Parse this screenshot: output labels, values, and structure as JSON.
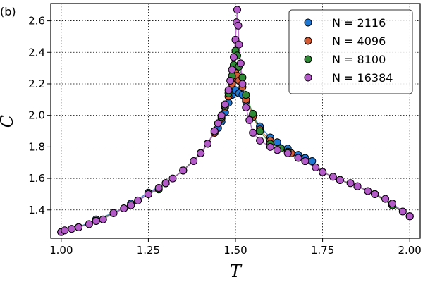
{
  "panel_label": "(b)",
  "chart_data": {
    "type": "scatter",
    "title": "",
    "xlabel": "T",
    "ylabel": "C",
    "xlim": [
      0.97,
      2.03
    ],
    "ylim": [
      1.22,
      2.71
    ],
    "xticks": [
      1.0,
      1.25,
      1.5,
      1.75,
      2.0
    ],
    "xtick_labels": [
      "1.00",
      "1.25",
      "1.50",
      "1.75",
      "2.00"
    ],
    "yticks": [
      1.4,
      1.6,
      1.8,
      2.0,
      2.2,
      2.4,
      2.6
    ],
    "ytick_labels": [
      "1.4",
      "1.6",
      "1.8",
      "2.0",
      "2.2",
      "2.4",
      "2.6"
    ],
    "grid": true,
    "grid_style": "dotted",
    "legend_position": "top-right",
    "series": [
      {
        "name": "N = 2116",
        "color": "#1f77d4",
        "points": [
          [
            1.0,
            1.26
          ],
          [
            1.05,
            1.29
          ],
          [
            1.1,
            1.34
          ],
          [
            1.15,
            1.38
          ],
          [
            1.2,
            1.44
          ],
          [
            1.25,
            1.51
          ],
          [
            1.3,
            1.57
          ],
          [
            1.35,
            1.65
          ],
          [
            1.4,
            1.76
          ],
          [
            1.42,
            1.82
          ],
          [
            1.44,
            1.89
          ],
          [
            1.45,
            1.92
          ],
          [
            1.46,
            1.96
          ],
          [
            1.47,
            2.02
          ],
          [
            1.48,
            2.08
          ],
          [
            1.49,
            2.13
          ],
          [
            1.5,
            2.16
          ],
          [
            1.51,
            2.14
          ],
          [
            1.52,
            2.13
          ],
          [
            1.53,
            2.09
          ],
          [
            1.55,
            2.0
          ],
          [
            1.57,
            1.93
          ],
          [
            1.6,
            1.86
          ],
          [
            1.62,
            1.83
          ],
          [
            1.65,
            1.79
          ],
          [
            1.68,
            1.75
          ],
          [
            1.7,
            1.73
          ],
          [
            1.72,
            1.71
          ],
          [
            1.75,
            1.64
          ],
          [
            1.8,
            1.59
          ],
          [
            1.85,
            1.55
          ],
          [
            1.9,
            1.5
          ],
          [
            1.95,
            1.44
          ],
          [
            2.0,
            1.36
          ]
        ]
      },
      {
        "name": "N = 4096",
        "color": "#d45b33",
        "points": [
          [
            1.0,
            1.26
          ],
          [
            1.05,
            1.29
          ],
          [
            1.1,
            1.33
          ],
          [
            1.15,
            1.38
          ],
          [
            1.2,
            1.43
          ],
          [
            1.25,
            1.5
          ],
          [
            1.3,
            1.57
          ],
          [
            1.35,
            1.65
          ],
          [
            1.4,
            1.76
          ],
          [
            1.42,
            1.82
          ],
          [
            1.44,
            1.89
          ],
          [
            1.46,
            1.98
          ],
          [
            1.47,
            2.05
          ],
          [
            1.48,
            2.12
          ],
          [
            1.49,
            2.2
          ],
          [
            1.495,
            2.24
          ],
          [
            1.5,
            2.27
          ],
          [
            1.505,
            2.25
          ],
          [
            1.51,
            2.22
          ],
          [
            1.52,
            2.18
          ],
          [
            1.53,
            2.1
          ],
          [
            1.55,
            1.99
          ],
          [
            1.57,
            1.91
          ],
          [
            1.6,
            1.84
          ],
          [
            1.63,
            1.79
          ],
          [
            1.66,
            1.76
          ],
          [
            1.7,
            1.71
          ],
          [
            1.75,
            1.64
          ],
          [
            1.8,
            1.59
          ],
          [
            1.85,
            1.55
          ],
          [
            1.9,
            1.5
          ],
          [
            1.95,
            1.43
          ],
          [
            2.0,
            1.36
          ]
        ]
      },
      {
        "name": "N = 8100",
        "color": "#2e8a35",
        "points": [
          [
            1.0,
            1.26
          ],
          [
            1.05,
            1.29
          ],
          [
            1.1,
            1.33
          ],
          [
            1.15,
            1.38
          ],
          [
            1.2,
            1.43
          ],
          [
            1.25,
            1.5
          ],
          [
            1.28,
            1.53
          ],
          [
            1.3,
            1.57
          ],
          [
            1.35,
            1.65
          ],
          [
            1.4,
            1.76
          ],
          [
            1.42,
            1.82
          ],
          [
            1.44,
            1.9
          ],
          [
            1.46,
            1.99
          ],
          [
            1.47,
            2.06
          ],
          [
            1.48,
            2.14
          ],
          [
            1.49,
            2.25
          ],
          [
            1.495,
            2.32
          ],
          [
            1.5,
            2.41
          ],
          [
            1.505,
            2.38
          ],
          [
            1.51,
            2.31
          ],
          [
            1.52,
            2.24
          ],
          [
            1.53,
            2.13
          ],
          [
            1.55,
            2.01
          ],
          [
            1.57,
            1.9
          ],
          [
            1.6,
            1.82
          ],
          [
            1.63,
            1.79
          ],
          [
            1.65,
            1.77
          ],
          [
            1.7,
            1.71
          ],
          [
            1.75,
            1.64
          ],
          [
            1.8,
            1.59
          ],
          [
            1.85,
            1.55
          ],
          [
            1.9,
            1.5
          ],
          [
            1.95,
            1.43
          ],
          [
            2.0,
            1.36
          ]
        ]
      },
      {
        "name": "N = 16384",
        "color": "#b45ac8",
        "points": [
          [
            1.0,
            1.26
          ],
          [
            1.01,
            1.27
          ],
          [
            1.03,
            1.28
          ],
          [
            1.05,
            1.29
          ],
          [
            1.08,
            1.31
          ],
          [
            1.1,
            1.33
          ],
          [
            1.12,
            1.34
          ],
          [
            1.15,
            1.38
          ],
          [
            1.18,
            1.41
          ],
          [
            1.2,
            1.43
          ],
          [
            1.22,
            1.46
          ],
          [
            1.25,
            1.5
          ],
          [
            1.28,
            1.54
          ],
          [
            1.3,
            1.57
          ],
          [
            1.32,
            1.6
          ],
          [
            1.35,
            1.65
          ],
          [
            1.38,
            1.71
          ],
          [
            1.4,
            1.76
          ],
          [
            1.42,
            1.82
          ],
          [
            1.44,
            1.9
          ],
          [
            1.45,
            1.95
          ],
          [
            1.46,
            2.0
          ],
          [
            1.47,
            2.07
          ],
          [
            1.48,
            2.16
          ],
          [
            1.485,
            2.22
          ],
          [
            1.49,
            2.29
          ],
          [
            1.495,
            2.37
          ],
          [
            1.5,
            2.48
          ],
          [
            1.503,
            2.59
          ],
          [
            1.505,
            2.67
          ],
          [
            1.508,
            2.57
          ],
          [
            1.51,
            2.45
          ],
          [
            1.515,
            2.33
          ],
          [
            1.52,
            2.2
          ],
          [
            1.53,
            2.05
          ],
          [
            1.54,
            1.97
          ],
          [
            1.55,
            1.89
          ],
          [
            1.57,
            1.84
          ],
          [
            1.6,
            1.8
          ],
          [
            1.62,
            1.78
          ],
          [
            1.65,
            1.76
          ],
          [
            1.68,
            1.73
          ],
          [
            1.7,
            1.71
          ],
          [
            1.73,
            1.67
          ],
          [
            1.75,
            1.64
          ],
          [
            1.78,
            1.61
          ],
          [
            1.8,
            1.59
          ],
          [
            1.83,
            1.57
          ],
          [
            1.85,
            1.55
          ],
          [
            1.88,
            1.52
          ],
          [
            1.9,
            1.5
          ],
          [
            1.93,
            1.47
          ],
          [
            1.95,
            1.44
          ],
          [
            1.98,
            1.39
          ],
          [
            2.0,
            1.36
          ]
        ]
      }
    ]
  }
}
